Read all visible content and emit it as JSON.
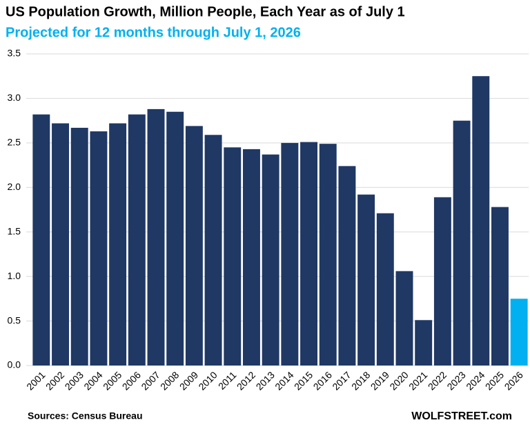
{
  "chart_data": {
    "type": "bar",
    "title": "US Population Growth, Million People, Each Year as of July 1",
    "subtitle": "Projected for 12 months through July 1, 2026",
    "source": "Sources: Census Bureau",
    "brand": "WOLFSTREET.com",
    "categories": [
      "2001",
      "2002",
      "2003",
      "2004",
      "2005",
      "2006",
      "2007",
      "2008",
      "2009",
      "2010",
      "2011",
      "2012",
      "2013",
      "2014",
      "2015",
      "2016",
      "2017",
      "2018",
      "2019",
      "2020",
      "2021",
      "2022",
      "2023",
      "2024",
      "2025",
      "2026"
    ],
    "values": [
      2.82,
      2.72,
      2.67,
      2.63,
      2.72,
      2.82,
      2.88,
      2.85,
      2.69,
      2.59,
      2.45,
      2.43,
      2.37,
      2.5,
      2.51,
      2.49,
      2.24,
      1.92,
      1.71,
      1.06,
      0.51,
      1.89,
      2.75,
      3.25,
      1.78,
      0.75
    ],
    "colors": [
      "#1f3864",
      "#1f3864",
      "#1f3864",
      "#1f3864",
      "#1f3864",
      "#1f3864",
      "#1f3864",
      "#1f3864",
      "#1f3864",
      "#1f3864",
      "#1f3864",
      "#1f3864",
      "#1f3864",
      "#1f3864",
      "#1f3864",
      "#1f3864",
      "#1f3864",
      "#1f3864",
      "#1f3864",
      "#1f3864",
      "#1f3864",
      "#1f3864",
      "#1f3864",
      "#1f3864",
      "#1f3864",
      "#00b0f0"
    ],
    "subtitle_color": "#00b0f0",
    "ylim": [
      0,
      3.5
    ],
    "yticks": [
      {
        "value": 0,
        "label": "0.0"
      },
      0.5,
      {
        "value": 1,
        "label": "1.0"
      },
      1.5,
      {
        "value": 2,
        "label": "2.0"
      },
      2.5,
      {
        "value": 3,
        "label": "3.0"
      },
      3.5
    ],
    "grid": true
  }
}
